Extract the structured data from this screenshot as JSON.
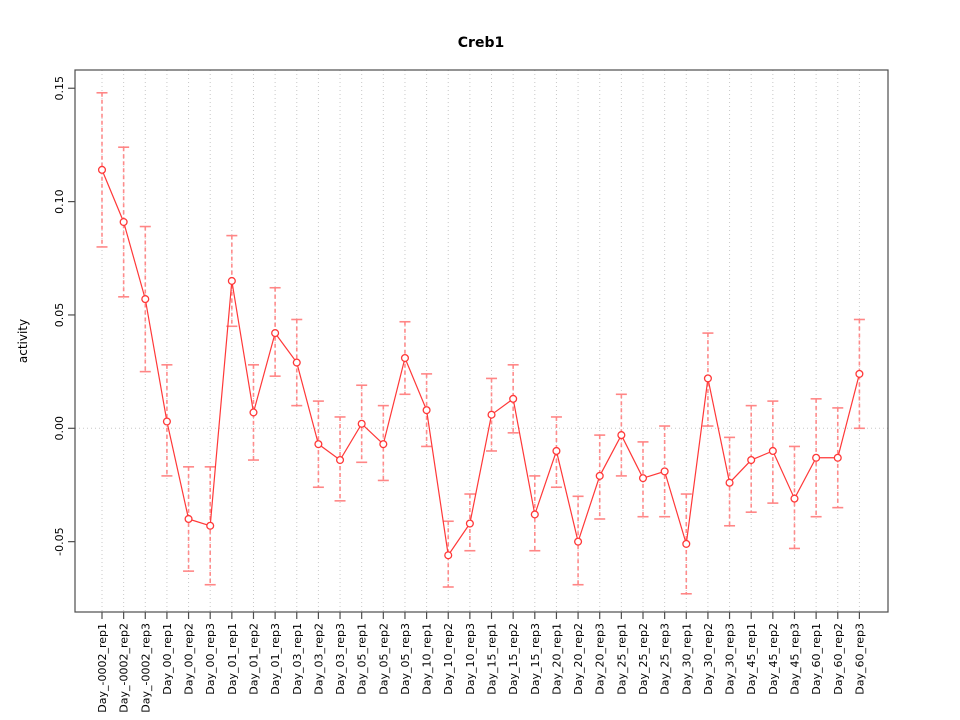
{
  "chart_data": {
    "type": "line",
    "title": "Creb1",
    "xlabel": "",
    "ylabel": "activity",
    "legend": "none",
    "grid": "dotted vertical gridline at every category; dotted horizontal line at y=0",
    "ylim": [
      -0.08,
      0.16
    ],
    "ytick_labels": [
      "0.15",
      "0.10",
      "0.05",
      "0.00",
      "-0.05"
    ],
    "ytick_values": [
      0.15,
      0.1,
      0.05,
      0.0,
      -0.05
    ],
    "categories": [
      "Day_-0002_rep1",
      "Day_-0002_rep2",
      "Day_-0002_rep3",
      "Day_00_rep1",
      "Day_00_rep2",
      "Day_00_rep3",
      "Day_01_rep1",
      "Day_01_rep2",
      "Day_01_rep3",
      "Day_03_rep1",
      "Day_03_rep2",
      "Day_03_rep3",
      "Day_05_rep1",
      "Day_05_rep2",
      "Day_05_rep3",
      "Day_10_rep1",
      "Day_10_rep2",
      "Day_10_rep3",
      "Day_15_rep1",
      "Day_15_rep2",
      "Day_15_rep3",
      "Day_20_rep1",
      "Day_20_rep2",
      "Day_20_rep3",
      "Day_25_rep1",
      "Day_25_rep2",
      "Day_25_rep3",
      "Day_30_rep1",
      "Day_30_rep2",
      "Day_30_rep3",
      "Day_45_rep1",
      "Day_45_rep2",
      "Day_45_rep3",
      "Day_60_rep1",
      "Day_60_rep2",
      "Day_60_rep3"
    ],
    "series": [
      {
        "name": "activity",
        "marker": "open-circle",
        "values": [
          0.114,
          0.091,
          0.057,
          0.003,
          -0.04,
          -0.043,
          0.065,
          0.007,
          0.042,
          0.029,
          -0.007,
          -0.014,
          0.002,
          -0.007,
          0.031,
          0.008,
          -0.056,
          -0.042,
          0.006,
          0.013,
          -0.038,
          -0.01,
          -0.05,
          -0.021,
          -0.003,
          -0.022,
          -0.019,
          -0.051,
          0.022,
          -0.024,
          -0.014,
          -0.01,
          -0.031,
          -0.013,
          -0.013,
          0.024
        ],
        "error_upper": [
          0.148,
          0.124,
          0.089,
          0.028,
          -0.017,
          -0.017,
          0.085,
          0.028,
          0.062,
          0.048,
          0.012,
          0.005,
          0.019,
          0.01,
          0.047,
          0.024,
          -0.041,
          -0.029,
          0.022,
          0.028,
          -0.021,
          0.005,
          -0.03,
          -0.003,
          0.015,
          -0.006,
          0.001,
          -0.029,
          0.042,
          -0.004,
          0.01,
          0.012,
          -0.008,
          0.013,
          0.009,
          0.048
        ],
        "error_lower": [
          0.08,
          0.058,
          0.025,
          -0.021,
          -0.063,
          -0.069,
          0.045,
          -0.014,
          0.023,
          0.01,
          -0.026,
          -0.032,
          -0.015,
          -0.023,
          0.015,
          -0.008,
          -0.07,
          -0.054,
          -0.01,
          -0.002,
          -0.054,
          -0.026,
          -0.069,
          -0.04,
          -0.021,
          -0.039,
          -0.039,
          -0.073,
          0.001,
          -0.043,
          -0.037,
          -0.033,
          -0.053,
          -0.039,
          -0.035,
          0.0
        ]
      }
    ],
    "colors": {
      "line": "#ff3838",
      "marker": "#ff3838",
      "error_bar": "#ff8080",
      "grid": "#c8c8c8",
      "axis_box": "#4d4d4d",
      "text": "#000000",
      "background": "#ffffff"
    }
  }
}
